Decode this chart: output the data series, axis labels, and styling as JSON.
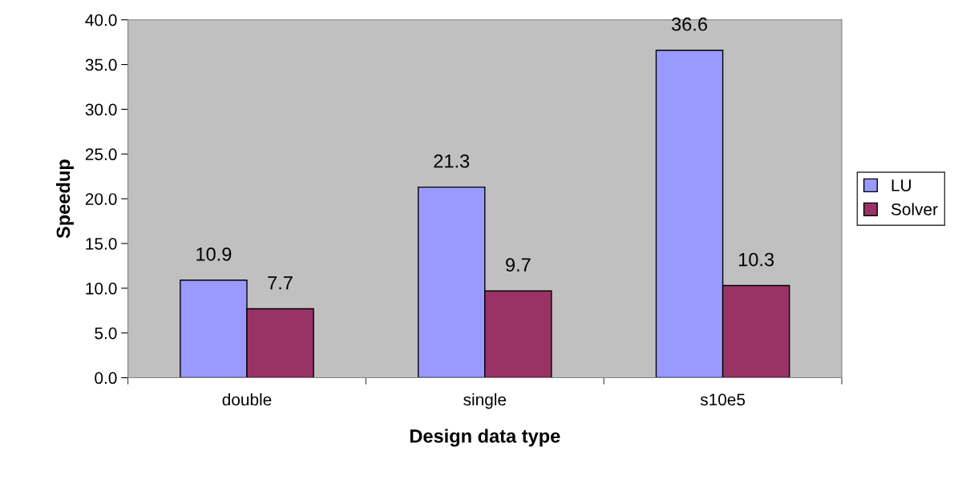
{
  "chart_data": {
    "type": "bar",
    "xlabel": "Design data type",
    "ylabel": "Speedup",
    "categories": [
      "double",
      "single",
      "s10e5"
    ],
    "series": [
      {
        "name": "LU",
        "color": "#9999ff",
        "values": [
          10.9,
          21.3,
          36.6
        ]
      },
      {
        "name": "Solver",
        "color": "#993366",
        "values": [
          7.7,
          9.7,
          10.3
        ]
      }
    ],
    "ylim": [
      0,
      40
    ],
    "yticks": [
      {
        "value": 0,
        "label": "0.0"
      },
      {
        "value": 5,
        "label": "5.0"
      },
      {
        "value": 10,
        "label": "10.0"
      },
      {
        "value": 15,
        "label": "15.0"
      },
      {
        "value": 20,
        "label": "20.0"
      },
      {
        "value": 25,
        "label": "25.0"
      },
      {
        "value": 30,
        "label": "30.0"
      },
      {
        "value": 35,
        "label": "35.0"
      },
      {
        "value": 40,
        "label": "40.0"
      }
    ],
    "data_labels": true,
    "grid": false,
    "legend": "right"
  }
}
